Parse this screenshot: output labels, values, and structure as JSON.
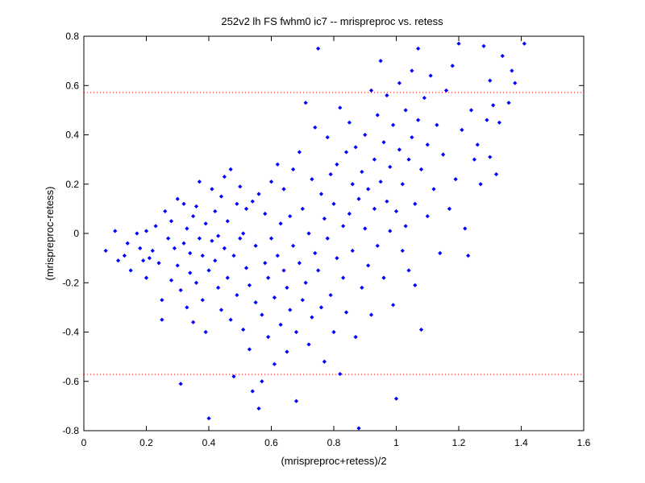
{
  "chart_data": {
    "type": "scatter",
    "title": "252v2 lh FS fwhm0 ic7 -- mrispreproc vs. retess",
    "xlabel": "(mrispreproc+retess)/2",
    "ylabel": "(mrispreproc-retess)",
    "xlim": [
      0,
      1.6
    ],
    "ylim": [
      -0.8,
      0.8
    ],
    "xticks": [
      "0",
      "0.2",
      "0.4",
      "0.6",
      "0.8",
      "1",
      "1.2",
      "1.4",
      "1.6"
    ],
    "yticks": [
      "0.8",
      "0.6",
      "0.4",
      "0.2",
      "0",
      "-0.2",
      "-0.4",
      "-0.6",
      "-0.8"
    ],
    "grid": false,
    "marker_color": "#0000ff",
    "reference_lines": {
      "color": "#ff0000",
      "style": "dotted",
      "y_values": [
        0.572,
        -0.572
      ]
    },
    "series": [
      {
        "points": [
          [
            0.07,
            -0.07
          ],
          [
            0.1,
            0.01
          ],
          [
            0.11,
            -0.11
          ],
          [
            0.13,
            -0.09
          ],
          [
            0.14,
            -0.04
          ],
          [
            0.15,
            -0.15
          ],
          [
            0.17,
            0.0
          ],
          [
            0.18,
            -0.06
          ],
          [
            0.19,
            -0.11
          ],
          [
            0.2,
            -0.18
          ],
          [
            0.2,
            0.01
          ],
          [
            0.21,
            -0.1
          ],
          [
            0.22,
            -0.07
          ],
          [
            0.23,
            0.03
          ],
          [
            0.24,
            -0.12
          ],
          [
            0.25,
            -0.27
          ],
          [
            0.25,
            -0.35
          ],
          [
            0.26,
            0.09
          ],
          [
            0.27,
            -0.02
          ],
          [
            0.28,
            -0.19
          ],
          [
            0.28,
            0.05
          ],
          [
            0.29,
            -0.06
          ],
          [
            0.3,
            -0.13
          ],
          [
            0.3,
            0.14
          ],
          [
            0.31,
            -0.61
          ],
          [
            0.31,
            -0.23
          ],
          [
            0.32,
            -0.04
          ],
          [
            0.32,
            0.12
          ],
          [
            0.33,
            -0.3
          ],
          [
            0.33,
            0.02
          ],
          [
            0.34,
            -0.16
          ],
          [
            0.34,
            -0.08
          ],
          [
            0.35,
            0.07
          ],
          [
            0.35,
            -0.36
          ],
          [
            0.36,
            -0.2
          ],
          [
            0.36,
            0.11
          ],
          [
            0.37,
            -0.02
          ],
          [
            0.37,
            0.21
          ],
          [
            0.38,
            -0.27
          ],
          [
            0.38,
            -0.09
          ],
          [
            0.39,
            -0.4
          ],
          [
            0.39,
            0.04
          ],
          [
            0.4,
            -0.15
          ],
          [
            0.4,
            -0.75
          ],
          [
            0.41,
            -0.03
          ],
          [
            0.41,
            0.18
          ],
          [
            0.42,
            -0.11
          ],
          [
            0.42,
            0.09
          ],
          [
            0.43,
            -0.22
          ],
          [
            0.43,
            -0.01
          ],
          [
            0.44,
            0.15
          ],
          [
            0.44,
            -0.31
          ],
          [
            0.45,
            -0.06
          ],
          [
            0.45,
            0.23
          ],
          [
            0.46,
            -0.18
          ],
          [
            0.46,
            0.05
          ],
          [
            0.47,
            -0.35
          ],
          [
            0.47,
            0.26
          ],
          [
            0.48,
            -0.09
          ],
          [
            0.48,
            -0.58
          ],
          [
            0.49,
            0.12
          ],
          [
            0.49,
            -0.25
          ],
          [
            0.5,
            -0.02
          ],
          [
            0.5,
            0.19
          ],
          [
            0.51,
            -0.39
          ],
          [
            0.51,
            0.0
          ],
          [
            0.52,
            -0.14
          ],
          [
            0.52,
            0.1
          ],
          [
            0.53,
            -0.47
          ],
          [
            0.53,
            -0.21
          ],
          [
            0.54,
            -0.64
          ],
          [
            0.54,
            0.13
          ],
          [
            0.55,
            -0.28
          ],
          [
            0.55,
            -0.05
          ],
          [
            0.56,
            -0.71
          ],
          [
            0.56,
            0.16
          ],
          [
            0.57,
            -0.6
          ],
          [
            0.57,
            -0.33
          ],
          [
            0.58,
            -0.12
          ],
          [
            0.58,
            0.08
          ],
          [
            0.59,
            -0.42
          ],
          [
            0.59,
            -0.18
          ],
          [
            0.6,
            0.21
          ],
          [
            0.6,
            -0.02
          ],
          [
            0.61,
            -0.53
          ],
          [
            0.61,
            -0.26
          ],
          [
            0.62,
            0.28
          ],
          [
            0.62,
            -0.09
          ],
          [
            0.63,
            -0.37
          ],
          [
            0.63,
            0.04
          ],
          [
            0.64,
            -0.15
          ],
          [
            0.64,
            0.18
          ],
          [
            0.65,
            -0.48
          ],
          [
            0.65,
            -0.22
          ],
          [
            0.66,
            0.07
          ],
          [
            0.66,
            -0.31
          ],
          [
            0.67,
            -0.05
          ],
          [
            0.67,
            0.26
          ],
          [
            0.68,
            -0.68
          ],
          [
            0.68,
            -0.4
          ],
          [
            0.69,
            -0.12
          ],
          [
            0.69,
            0.33
          ],
          [
            0.7,
            -0.27
          ],
          [
            0.7,
            0.1
          ],
          [
            0.71,
            0.53
          ],
          [
            0.71,
            -0.2
          ],
          [
            0.72,
            -0.45
          ],
          [
            0.72,
            0.0
          ],
          [
            0.73,
            0.22
          ],
          [
            0.73,
            -0.34
          ],
          [
            0.74,
            -0.08
          ],
          [
            0.74,
            0.43
          ],
          [
            0.75,
            0.75
          ],
          [
            0.75,
            -0.15
          ],
          [
            0.76,
            -0.3
          ],
          [
            0.76,
            0.16
          ],
          [
            0.77,
            0.06
          ],
          [
            0.77,
            -0.52
          ],
          [
            0.78,
            0.39
          ],
          [
            0.78,
            -0.02
          ],
          [
            0.79,
            -0.25
          ],
          [
            0.79,
            0.24
          ],
          [
            0.8,
            0.12
          ],
          [
            0.8,
            -0.4
          ],
          [
            0.81,
            0.28
          ],
          [
            0.81,
            -0.1
          ],
          [
            0.82,
            -0.57
          ],
          [
            0.82,
            0.51
          ],
          [
            0.83,
            0.03
          ],
          [
            0.83,
            -0.18
          ],
          [
            0.84,
            0.33
          ],
          [
            0.84,
            -0.32
          ],
          [
            0.85,
            0.45
          ],
          [
            0.85,
            0.08
          ],
          [
            0.86,
            -0.07
          ],
          [
            0.86,
            0.2
          ],
          [
            0.87,
            0.35
          ],
          [
            0.87,
            -0.42
          ],
          [
            0.88,
            0.14
          ],
          [
            0.88,
            -0.79
          ],
          [
            0.89,
            0.25
          ],
          [
            0.89,
            -0.22
          ],
          [
            0.9,
            0.02
          ],
          [
            0.9,
            0.4
          ],
          [
            0.91,
            -0.13
          ],
          [
            0.91,
            0.18
          ],
          [
            0.92,
            0.58
          ],
          [
            0.92,
            -0.33
          ],
          [
            0.93,
            0.3
          ],
          [
            0.93,
            0.1
          ],
          [
            0.94,
            0.48
          ],
          [
            0.94,
            -0.05
          ],
          [
            0.95,
            0.21
          ],
          [
            0.95,
            0.7
          ],
          [
            0.96,
            -0.18
          ],
          [
            0.96,
            0.37
          ],
          [
            0.97,
            0.13
          ],
          [
            0.97,
            0.56
          ],
          [
            0.98,
            0.01
          ],
          [
            0.98,
            0.27
          ],
          [
            0.99,
            -0.29
          ],
          [
            0.99,
            0.44
          ],
          [
            1.0,
            0.09
          ],
          [
            1.0,
            -0.67
          ],
          [
            1.01,
            0.34
          ],
          [
            1.01,
            0.61
          ],
          [
            1.02,
            -0.07
          ],
          [
            1.02,
            0.2
          ],
          [
            1.03,
            0.5
          ],
          [
            1.03,
            0.03
          ],
          [
            1.04,
            0.3
          ],
          [
            1.04,
            -0.15
          ],
          [
            1.05,
            0.39
          ],
          [
            1.05,
            0.66
          ],
          [
            1.06,
            0.12
          ],
          [
            1.06,
            -0.21
          ],
          [
            1.07,
            0.46
          ],
          [
            1.07,
            0.75
          ],
          [
            1.08,
            -0.39
          ],
          [
            1.08,
            0.26
          ],
          [
            1.09,
            0.55
          ],
          [
            1.1,
            0.07
          ],
          [
            1.1,
            0.36
          ],
          [
            1.11,
            0.64
          ],
          [
            1.12,
            0.18
          ],
          [
            1.13,
            0.44
          ],
          [
            1.14,
            -0.08
          ],
          [
            1.15,
            0.32
          ],
          [
            1.16,
            0.58
          ],
          [
            1.17,
            0.1
          ],
          [
            1.18,
            0.68
          ],
          [
            1.19,
            0.22
          ],
          [
            1.2,
            0.77
          ],
          [
            1.21,
            0.42
          ],
          [
            1.22,
            0.02
          ],
          [
            1.23,
            -0.09
          ],
          [
            1.24,
            0.5
          ],
          [
            1.25,
            0.3
          ],
          [
            1.26,
            0.36
          ],
          [
            1.27,
            0.2
          ],
          [
            1.28,
            0.76
          ],
          [
            1.29,
            0.46
          ],
          [
            1.3,
            0.62
          ],
          [
            1.3,
            0.31
          ],
          [
            1.31,
            0.52
          ],
          [
            1.32,
            0.24
          ],
          [
            1.33,
            0.45
          ],
          [
            1.34,
            0.72
          ],
          [
            1.36,
            0.53
          ],
          [
            1.37,
            0.66
          ],
          [
            1.38,
            0.61
          ],
          [
            1.41,
            0.77
          ]
        ]
      }
    ]
  }
}
